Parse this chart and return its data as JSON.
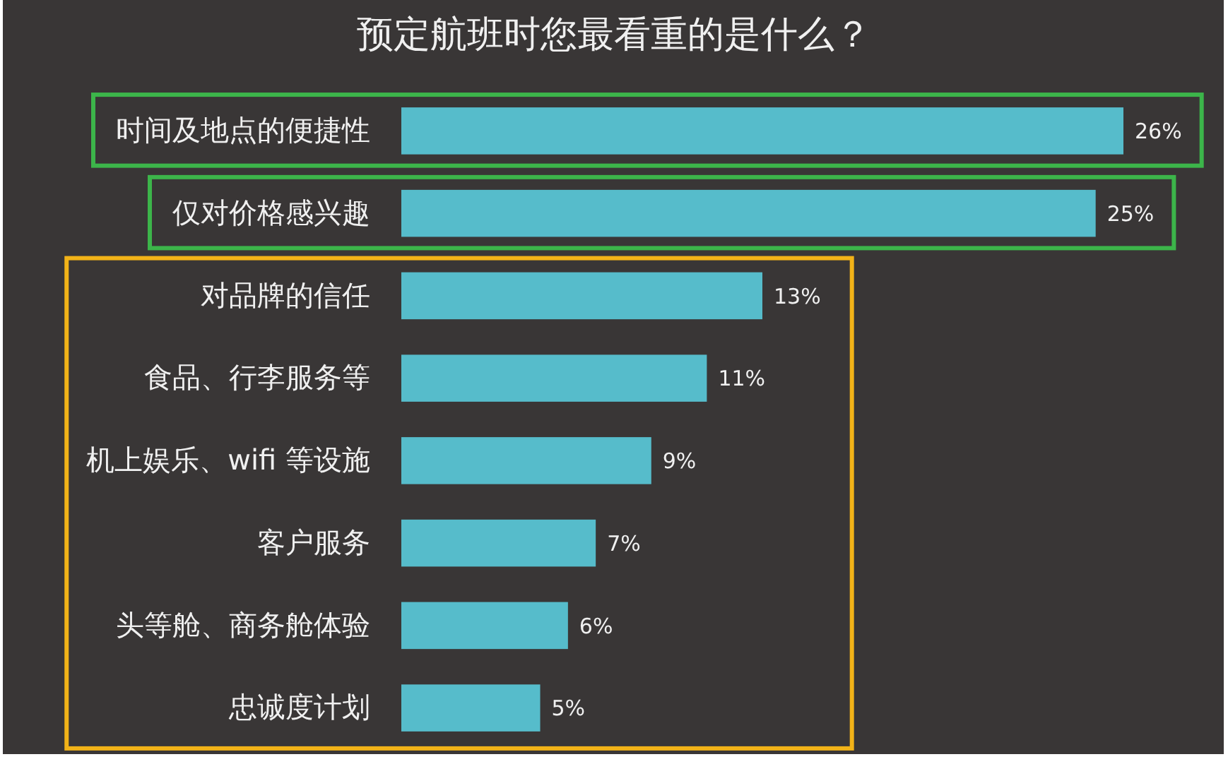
{
  "chart_data": {
    "type": "bar",
    "orientation": "horizontal",
    "title": "预定航班时您最看重的是什么？",
    "categories": [
      "时间及地点的便捷性",
      "仅对价格感兴趣",
      "对品牌的信任",
      "食品、行李服务等",
      "机上娱乐、wifi 等设施",
      "客户服务",
      "头等舱、商务舱体验",
      "忠诚度计划"
    ],
    "values": [
      26,
      25,
      13,
      11,
      9,
      7,
      6,
      5
    ],
    "value_labels": [
      "26%",
      "25%",
      "13%",
      "11%",
      "9%",
      "7%",
      "6%",
      "5%"
    ],
    "color": "#56bccb",
    "tick_labels": "y"
  }
}
